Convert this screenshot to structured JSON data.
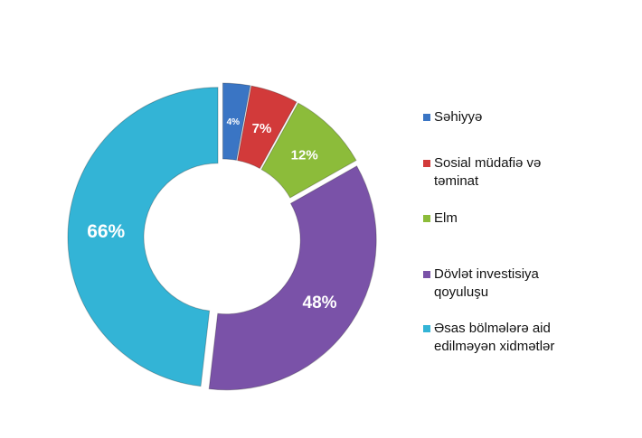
{
  "chart_data": {
    "type": "pie",
    "variant": "donut",
    "categories": [
      "Səhiyyə",
      "Sosial müdafiə və təminat",
      "Elm",
      "Dövlət investisiya qoyuluşu",
      "Əsas bölmələrə aid edilməyən xidmətlər"
    ],
    "values": [
      4,
      7,
      12,
      48,
      66
    ],
    "labels": [
      "4%",
      "7%",
      "12%",
      "48%",
      "66%"
    ],
    "colors": [
      "#3a75c4",
      "#d23a3a",
      "#8cbc3a",
      "#7a52a8",
      "#33b4d6"
    ],
    "exploded": true,
    "legend_position": "right"
  }
}
